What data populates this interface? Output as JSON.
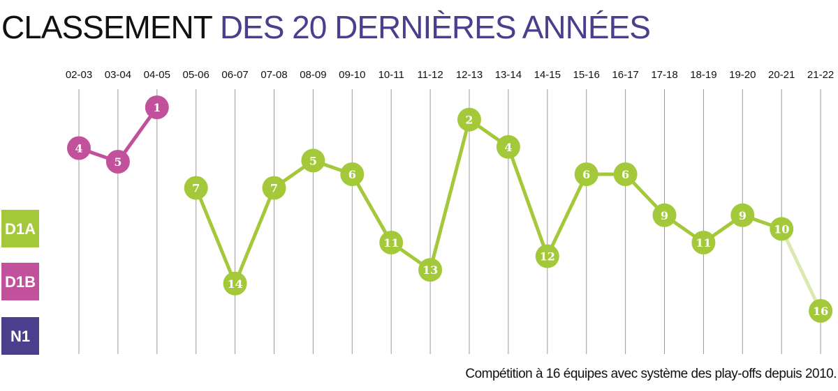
{
  "title": {
    "part1": "CLASSEMENT",
    "part2": "DES 20 DERNIÈRES ANNÉES"
  },
  "footnote": "Compétition à 16 équipes avec système des play-offs depuis 2010.",
  "colors": {
    "D1A": "#a3c93a",
    "D1B": "#c0519a",
    "N1": "#4a3f8c",
    "title_accent": "#4a3f8c",
    "grid": "#999999"
  },
  "levels": [
    {
      "name": "D1A",
      "color": "#a3c93a"
    },
    {
      "name": "D1B",
      "color": "#c0519a"
    },
    {
      "name": "N1",
      "color": "#4a3f8c"
    }
  ],
  "chart_data": {
    "type": "line",
    "title": "CLASSEMENT DES 20 DERNIÈRES ANNÉES",
    "categories": [
      "02-03",
      "03-04",
      "04-05",
      "05-06",
      "06-07",
      "07-08",
      "08-09",
      "09-10",
      "10-11",
      "11-12",
      "12-13",
      "13-14",
      "14-15",
      "15-16",
      "16-17",
      "17-18",
      "18-19",
      "19-20",
      "20-21",
      "21-22"
    ],
    "points": [
      {
        "season": "02-03",
        "rank": 4,
        "division": "D1B"
      },
      {
        "season": "03-04",
        "rank": 5,
        "division": "D1B"
      },
      {
        "season": "04-05",
        "rank": 1,
        "division": "D1B"
      },
      {
        "season": "05-06",
        "rank": 7,
        "division": "D1A"
      },
      {
        "season": "06-07",
        "rank": 14,
        "division": "D1A"
      },
      {
        "season": "07-08",
        "rank": 7,
        "division": "D1A"
      },
      {
        "season": "08-09",
        "rank": 5,
        "division": "D1A"
      },
      {
        "season": "09-10",
        "rank": 6,
        "division": "D1A"
      },
      {
        "season": "10-11",
        "rank": 11,
        "division": "D1A"
      },
      {
        "season": "11-12",
        "rank": 13,
        "division": "D1A"
      },
      {
        "season": "12-13",
        "rank": 2,
        "division": "D1A"
      },
      {
        "season": "13-14",
        "rank": 4,
        "division": "D1A"
      },
      {
        "season": "14-15",
        "rank": 12,
        "division": "D1A"
      },
      {
        "season": "15-16",
        "rank": 6,
        "division": "D1A"
      },
      {
        "season": "16-17",
        "rank": 6,
        "division": "D1A"
      },
      {
        "season": "17-18",
        "rank": 9,
        "division": "D1A"
      },
      {
        "season": "18-19",
        "rank": 11,
        "division": "D1A"
      },
      {
        "season": "19-20",
        "rank": 9,
        "division": "D1A"
      },
      {
        "season": "20-21",
        "rank": 10,
        "division": "D1A"
      },
      {
        "season": "21-22",
        "rank": 16,
        "division": "D1A"
      }
    ],
    "segments": [
      {
        "division": "D1B",
        "from": 0,
        "to": 2
      },
      {
        "division": "D1A",
        "from": 3,
        "to": 18
      },
      {
        "division": "D1A",
        "from": 18,
        "to": 19,
        "faded": true
      }
    ],
    "legend": [
      "D1A",
      "D1B",
      "N1"
    ],
    "legend_position": "left",
    "grid": true
  }
}
